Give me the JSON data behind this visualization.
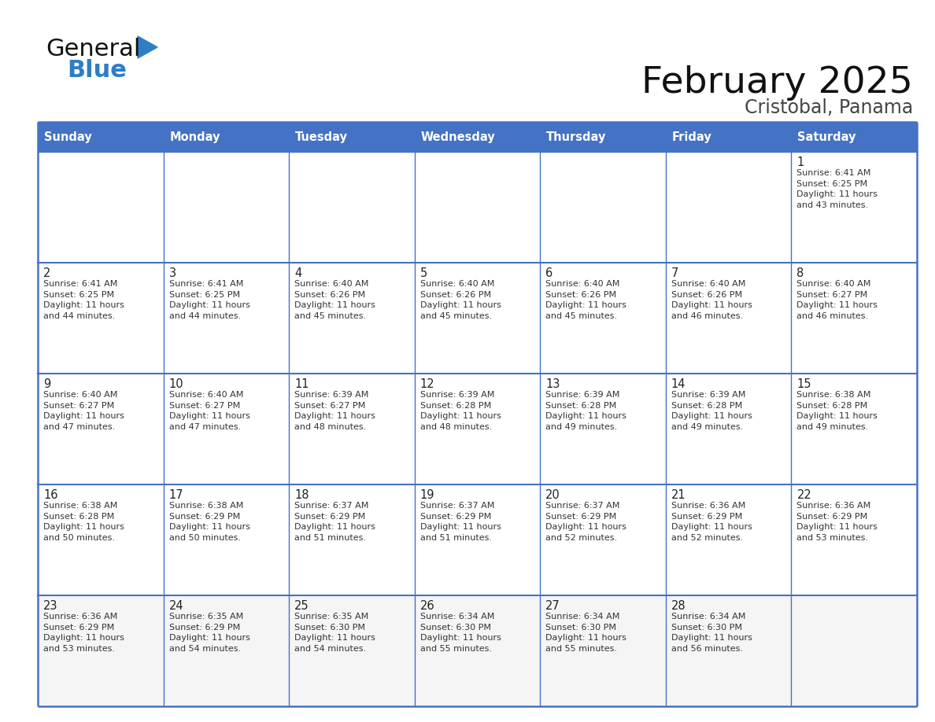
{
  "title": "February 2025",
  "subtitle": "Cristobal, Panama",
  "days_of_week": [
    "Sunday",
    "Monday",
    "Tuesday",
    "Wednesday",
    "Thursday",
    "Friday",
    "Saturday"
  ],
  "header_bg": "#4472C4",
  "header_text": "#FFFFFF",
  "cell_bg": "#FFFFFF",
  "cell_bg_last": "#F5F5F5",
  "border_color": "#4472C4",
  "sep_line_color": "#4472C4",
  "day_num_color": "#222222",
  "text_color": "#333333",
  "title_color": "#111111",
  "subtitle_color": "#444444",
  "logo_general_color": "#111111",
  "logo_blue_color": "#2e7ec4",
  "weeks": [
    [
      {
        "day": null,
        "data": null
      },
      {
        "day": null,
        "data": null
      },
      {
        "day": null,
        "data": null
      },
      {
        "day": null,
        "data": null
      },
      {
        "day": null,
        "data": null
      },
      {
        "day": null,
        "data": null
      },
      {
        "day": 1,
        "data": "Sunrise: 6:41 AM\nSunset: 6:25 PM\nDaylight: 11 hours\nand 43 minutes."
      }
    ],
    [
      {
        "day": 2,
        "data": "Sunrise: 6:41 AM\nSunset: 6:25 PM\nDaylight: 11 hours\nand 44 minutes."
      },
      {
        "day": 3,
        "data": "Sunrise: 6:41 AM\nSunset: 6:25 PM\nDaylight: 11 hours\nand 44 minutes."
      },
      {
        "day": 4,
        "data": "Sunrise: 6:40 AM\nSunset: 6:26 PM\nDaylight: 11 hours\nand 45 minutes."
      },
      {
        "day": 5,
        "data": "Sunrise: 6:40 AM\nSunset: 6:26 PM\nDaylight: 11 hours\nand 45 minutes."
      },
      {
        "day": 6,
        "data": "Sunrise: 6:40 AM\nSunset: 6:26 PM\nDaylight: 11 hours\nand 45 minutes."
      },
      {
        "day": 7,
        "data": "Sunrise: 6:40 AM\nSunset: 6:26 PM\nDaylight: 11 hours\nand 46 minutes."
      },
      {
        "day": 8,
        "data": "Sunrise: 6:40 AM\nSunset: 6:27 PM\nDaylight: 11 hours\nand 46 minutes."
      }
    ],
    [
      {
        "day": 9,
        "data": "Sunrise: 6:40 AM\nSunset: 6:27 PM\nDaylight: 11 hours\nand 47 minutes."
      },
      {
        "day": 10,
        "data": "Sunrise: 6:40 AM\nSunset: 6:27 PM\nDaylight: 11 hours\nand 47 minutes."
      },
      {
        "day": 11,
        "data": "Sunrise: 6:39 AM\nSunset: 6:27 PM\nDaylight: 11 hours\nand 48 minutes."
      },
      {
        "day": 12,
        "data": "Sunrise: 6:39 AM\nSunset: 6:28 PM\nDaylight: 11 hours\nand 48 minutes."
      },
      {
        "day": 13,
        "data": "Sunrise: 6:39 AM\nSunset: 6:28 PM\nDaylight: 11 hours\nand 49 minutes."
      },
      {
        "day": 14,
        "data": "Sunrise: 6:39 AM\nSunset: 6:28 PM\nDaylight: 11 hours\nand 49 minutes."
      },
      {
        "day": 15,
        "data": "Sunrise: 6:38 AM\nSunset: 6:28 PM\nDaylight: 11 hours\nand 49 minutes."
      }
    ],
    [
      {
        "day": 16,
        "data": "Sunrise: 6:38 AM\nSunset: 6:28 PM\nDaylight: 11 hours\nand 50 minutes."
      },
      {
        "day": 17,
        "data": "Sunrise: 6:38 AM\nSunset: 6:29 PM\nDaylight: 11 hours\nand 50 minutes."
      },
      {
        "day": 18,
        "data": "Sunrise: 6:37 AM\nSunset: 6:29 PM\nDaylight: 11 hours\nand 51 minutes."
      },
      {
        "day": 19,
        "data": "Sunrise: 6:37 AM\nSunset: 6:29 PM\nDaylight: 11 hours\nand 51 minutes."
      },
      {
        "day": 20,
        "data": "Sunrise: 6:37 AM\nSunset: 6:29 PM\nDaylight: 11 hours\nand 52 minutes."
      },
      {
        "day": 21,
        "data": "Sunrise: 6:36 AM\nSunset: 6:29 PM\nDaylight: 11 hours\nand 52 minutes."
      },
      {
        "day": 22,
        "data": "Sunrise: 6:36 AM\nSunset: 6:29 PM\nDaylight: 11 hours\nand 53 minutes."
      }
    ],
    [
      {
        "day": 23,
        "data": "Sunrise: 6:36 AM\nSunset: 6:29 PM\nDaylight: 11 hours\nand 53 minutes."
      },
      {
        "day": 24,
        "data": "Sunrise: 6:35 AM\nSunset: 6:29 PM\nDaylight: 11 hours\nand 54 minutes."
      },
      {
        "day": 25,
        "data": "Sunrise: 6:35 AM\nSunset: 6:30 PM\nDaylight: 11 hours\nand 54 minutes."
      },
      {
        "day": 26,
        "data": "Sunrise: 6:34 AM\nSunset: 6:30 PM\nDaylight: 11 hours\nand 55 minutes."
      },
      {
        "day": 27,
        "data": "Sunrise: 6:34 AM\nSunset: 6:30 PM\nDaylight: 11 hours\nand 55 minutes."
      },
      {
        "day": 28,
        "data": "Sunrise: 6:34 AM\nSunset: 6:30 PM\nDaylight: 11 hours\nand 56 minutes."
      },
      {
        "day": null,
        "data": null
      }
    ]
  ]
}
